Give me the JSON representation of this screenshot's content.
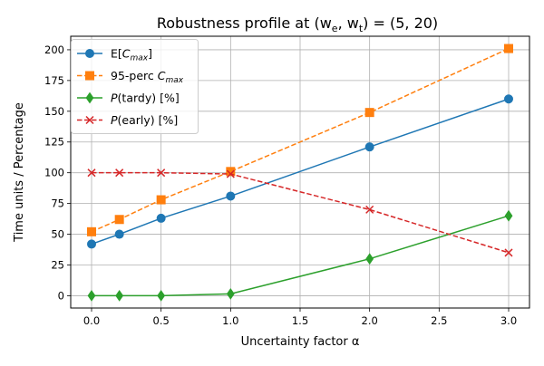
{
  "chart_data": {
    "type": "line",
    "title": "Robustness profile at (w",
    "title_sub_e": "e",
    "title_comma": ", w",
    "title_sub_t": "t",
    "title_rest": ") = (5, 20)",
    "xlabel": "Uncertainty factor α",
    "ylabel": "Time units  /  Percentage",
    "x": [
      0.0,
      0.2,
      0.5,
      1.0,
      2.0,
      3.0
    ],
    "xlim": [
      -0.15,
      3.15
    ],
    "ylim": [
      -10,
      211
    ],
    "xticks": [
      0.0,
      0.5,
      1.0,
      1.5,
      2.0,
      2.5,
      3.0
    ],
    "xtick_labels": [
      "0.0",
      "0.5",
      "1.0",
      "1.5",
      "2.0",
      "2.5",
      "3.0"
    ],
    "yticks": [
      0,
      25,
      50,
      75,
      100,
      125,
      150,
      175,
      200
    ],
    "ytick_labels": [
      "0",
      "25",
      "50",
      "75",
      "100",
      "125",
      "150",
      "175",
      "200"
    ],
    "grid": true,
    "legend_position": "top-left",
    "series": [
      {
        "name": "E[C_max]",
        "legend_pre": "E[",
        "legend_var": "C",
        "legend_sub": "max",
        "legend_post": "]",
        "values": [
          42,
          50,
          63,
          81,
          121,
          160
        ],
        "color": "#1f77b4",
        "marker": "circle",
        "linestyle": "solid"
      },
      {
        "name": "95-perc C_max",
        "legend_pre": "95-perc ",
        "legend_var": "C",
        "legend_sub": "max",
        "legend_post": "",
        "values": [
          52,
          62,
          78,
          101,
          149,
          201
        ],
        "color": "#ff7f0e",
        "marker": "square",
        "linestyle": "dashed"
      },
      {
        "name": "P(tardy) [%]",
        "legend_pre": "",
        "legend_var": "P",
        "legend_sub": "",
        "legend_post": "(tardy) [%]",
        "values": [
          0,
          0,
          0,
          1.5,
          30,
          65
        ],
        "color": "#2ca02c",
        "marker": "diamond",
        "linestyle": "solid"
      },
      {
        "name": "P(early) [%]",
        "legend_pre": "",
        "legend_var": "P",
        "legend_sub": "",
        "legend_post": "(early) [%]",
        "values": [
          100,
          100,
          100,
          99,
          70,
          35
        ],
        "color": "#d62728",
        "marker": "x",
        "linestyle": "dashed"
      }
    ]
  }
}
